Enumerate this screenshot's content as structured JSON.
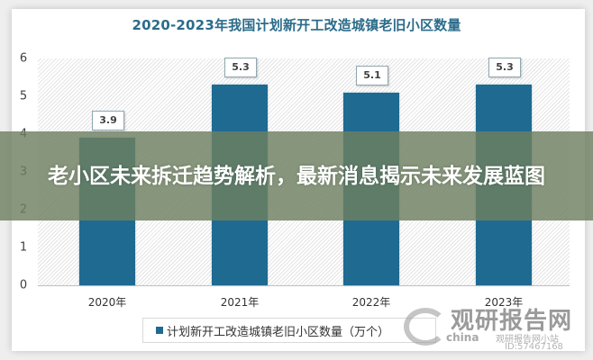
{
  "chart_data": {
    "type": "bar",
    "title": "2020-2023年我国计划新开工改造城镇老旧小区数量",
    "categories": [
      "2020年",
      "2021年",
      "2022年",
      "2023年"
    ],
    "series": [
      {
        "name": "计划新开工改造城镇老旧小区数量（万个）",
        "values": [
          3.9,
          5.3,
          5.1,
          5.3
        ],
        "color": "#1f6a91"
      }
    ],
    "data_labels": [
      "3.9",
      "5.3",
      "5.1",
      "5.3"
    ],
    "xlabel": "",
    "ylabel": "",
    "ylim": [
      0,
      6
    ],
    "yticks": [
      "0",
      "1",
      "2",
      "3",
      "4",
      "5",
      "6"
    ],
    "grid": false,
    "legend_position": "bottom"
  },
  "overlay": {
    "headline": "老小区未来拆迁趋势解析，最新消息揭示未来发展蓝图"
  },
  "watermark": {
    "brand": "观研报告网",
    "prefix": "china",
    "account": "观研报告网小站",
    "id": "ID:57467168"
  },
  "colors": {
    "bar": "#1f6a91",
    "title": "#2b6c8a",
    "banner": "#6e8060"
  }
}
